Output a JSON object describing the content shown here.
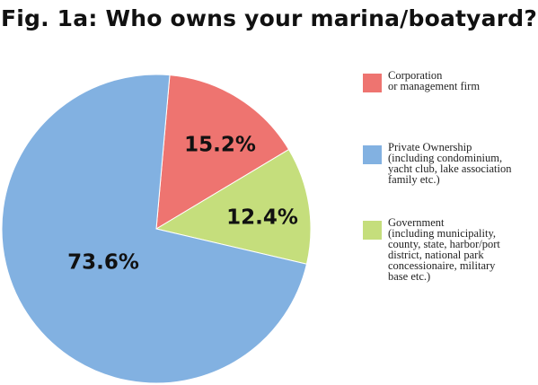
{
  "chart_data": {
    "type": "pie",
    "title": "Fig. 1a: Who owns your marina/boatyard?",
    "slices": [
      {
        "name": "Corporation or management firm",
        "legend_lines": [
          "Corporation",
          "or management firm"
        ],
        "value": 15.2,
        "label": "15.2%",
        "color": "#ee7470"
      },
      {
        "name": "Government (including municipality, county, state, harbor/port district, national park concessionaire, military base etc.)",
        "legend_lines": [
          "Government",
          "(including municipality,",
          "county, state, harbor/port",
          "district, national park",
          "concessionaire, military",
          "base etc.)"
        ],
        "value": 12.4,
        "label": "12.4%",
        "color": "#c5de7c"
      },
      {
        "name": "Private Ownership (including condominium, yacht club, lake association family etc.)",
        "legend_lines": [
          "Private Ownership",
          "(including condominium,",
          "yacht club, lake association",
          " family etc.)"
        ],
        "value": 73.6,
        "label": "73.6%",
        "color": "#82b1e1"
      }
    ],
    "legend_order": [
      0,
      2,
      1
    ],
    "legend_placement": "right",
    "start_angle_deg": 5
  }
}
